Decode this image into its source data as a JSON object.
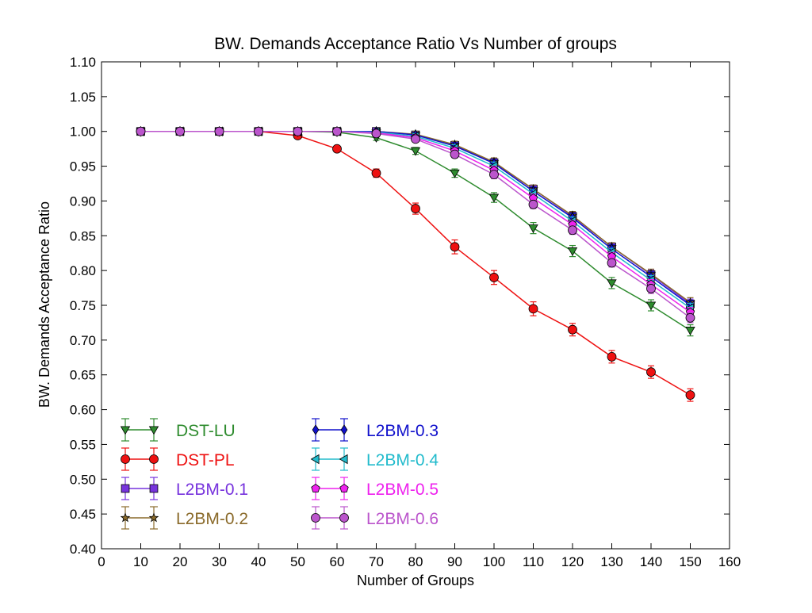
{
  "chart_data": {
    "type": "line",
    "title": "BW. Demands Acceptance Ratio Vs Number of groups",
    "xlabel": "Number of Groups",
    "ylabel": "BW. Demands Acceptance Ratio",
    "xlim": [
      0,
      160
    ],
    "ylim": [
      0.4,
      1.1
    ],
    "xticks": [
      0,
      10,
      20,
      30,
      40,
      50,
      60,
      70,
      80,
      90,
      100,
      110,
      120,
      130,
      140,
      150,
      160
    ],
    "yticks": [
      0.4,
      0.45,
      0.5,
      0.55,
      0.6,
      0.65,
      0.7,
      0.75,
      0.8,
      0.85,
      0.9,
      0.95,
      1.0,
      1.05,
      1.1
    ],
    "ytick_labels": [
      "0.40",
      "0.45",
      "0.50",
      "0.55",
      "0.60",
      "0.65",
      "0.70",
      "0.75",
      "0.80",
      "0.85",
      "0.90",
      "0.95",
      "1.00",
      "1.05",
      "1.10"
    ],
    "grid": false,
    "legend_placement": "lower-left",
    "x": [
      10,
      20,
      30,
      40,
      50,
      60,
      70,
      80,
      90,
      100,
      110,
      120,
      130,
      140,
      150
    ],
    "series": [
      {
        "name": "DST-LU",
        "color": "#2e8b2e",
        "marker": "triangle-down",
        "values": [
          1.0,
          1.0,
          1.0,
          1.0,
          1.0,
          0.999,
          0.991,
          0.972,
          0.94,
          0.905,
          0.861,
          0.828,
          0.782,
          0.75,
          0.714
        ],
        "errors": [
          0.002,
          0.002,
          0.002,
          0.002,
          0.002,
          0.003,
          0.004,
          0.005,
          0.006,
          0.007,
          0.008,
          0.008,
          0.008,
          0.008,
          0.008
        ]
      },
      {
        "name": "DST-PL",
        "color": "#ee1111",
        "marker": "circle",
        "values": [
          1.0,
          1.0,
          1.0,
          1.0,
          0.994,
          0.975,
          0.94,
          0.889,
          0.834,
          0.79,
          0.745,
          0.715,
          0.676,
          0.654,
          0.621
        ],
        "errors": [
          0.002,
          0.002,
          0.002,
          0.002,
          0.003,
          0.004,
          0.006,
          0.008,
          0.01,
          0.01,
          0.01,
          0.009,
          0.009,
          0.009,
          0.009
        ]
      },
      {
        "name": "L2BM-0.1",
        "color": "#7733dd",
        "marker": "square",
        "values": [
          1.0,
          1.0,
          1.0,
          1.0,
          1.0,
          1.0,
          1.0,
          0.995,
          0.98,
          0.955,
          0.917,
          0.878,
          0.834,
          0.794,
          0.752
        ],
        "errors": [
          0.002,
          0.002,
          0.002,
          0.002,
          0.002,
          0.002,
          0.002,
          0.004,
          0.005,
          0.006,
          0.006,
          0.006,
          0.006,
          0.007,
          0.007
        ]
      },
      {
        "name": "L2BM-0.2",
        "color": "#8a6a2a",
        "marker": "star",
        "values": [
          1.0,
          1.0,
          1.0,
          1.0,
          1.0,
          1.0,
          1.0,
          0.996,
          0.981,
          0.956,
          0.917,
          0.879,
          0.834,
          0.795,
          0.754
        ],
        "errors": [
          0.002,
          0.002,
          0.002,
          0.002,
          0.002,
          0.002,
          0.002,
          0.004,
          0.005,
          0.006,
          0.006,
          0.006,
          0.006,
          0.007,
          0.007
        ]
      },
      {
        "name": "L2BM-0.3",
        "color": "#1111cc",
        "marker": "diamond",
        "values": [
          1.0,
          1.0,
          1.0,
          1.0,
          1.0,
          1.0,
          1.0,
          0.995,
          0.979,
          0.954,
          0.914,
          0.876,
          0.831,
          0.791,
          0.75
        ],
        "errors": [
          0.002,
          0.002,
          0.002,
          0.002,
          0.002,
          0.002,
          0.002,
          0.004,
          0.005,
          0.006,
          0.006,
          0.006,
          0.006,
          0.007,
          0.007
        ]
      },
      {
        "name": "L2BM-0.4",
        "color": "#22bbcc",
        "marker": "triangle-left",
        "values": [
          1.0,
          1.0,
          1.0,
          1.0,
          1.0,
          1.0,
          0.999,
          0.993,
          0.976,
          0.95,
          0.91,
          0.871,
          0.826,
          0.786,
          0.746
        ],
        "errors": [
          0.002,
          0.002,
          0.002,
          0.002,
          0.002,
          0.002,
          0.002,
          0.004,
          0.005,
          0.006,
          0.006,
          0.006,
          0.006,
          0.007,
          0.007
        ]
      },
      {
        "name": "L2BM-0.5",
        "color": "#ee22ee",
        "marker": "pentagon",
        "values": [
          1.0,
          1.0,
          1.0,
          1.0,
          1.0,
          1.0,
          0.998,
          0.991,
          0.972,
          0.944,
          0.904,
          0.866,
          0.82,
          0.78,
          0.74
        ],
        "errors": [
          0.002,
          0.002,
          0.002,
          0.002,
          0.002,
          0.002,
          0.002,
          0.004,
          0.005,
          0.006,
          0.006,
          0.006,
          0.006,
          0.007,
          0.007
        ]
      },
      {
        "name": "L2BM-0.6",
        "color": "#bb55cc",
        "marker": "circle",
        "values": [
          1.0,
          1.0,
          1.0,
          1.0,
          1.0,
          1.0,
          0.997,
          0.989,
          0.967,
          0.938,
          0.895,
          0.858,
          0.811,
          0.774,
          0.732
        ],
        "errors": [
          0.002,
          0.002,
          0.002,
          0.002,
          0.002,
          0.002,
          0.002,
          0.004,
          0.005,
          0.006,
          0.006,
          0.006,
          0.006,
          0.007,
          0.007
        ]
      }
    ]
  }
}
